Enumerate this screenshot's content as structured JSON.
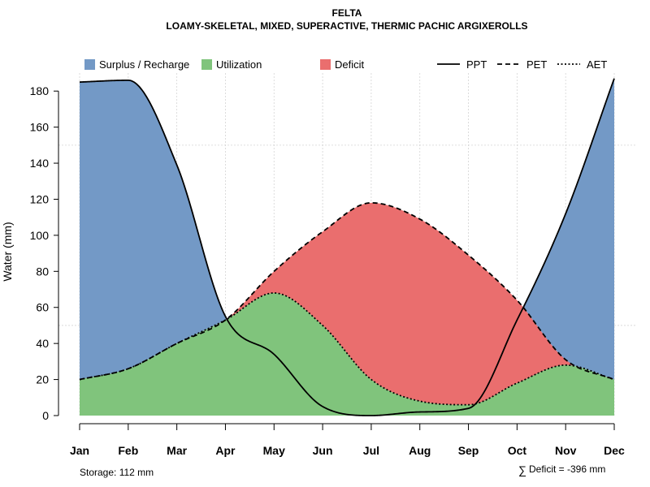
{
  "chart_data": {
    "type": "area",
    "title": "FELTA",
    "subtitle": "LOAMY-SKELETAL, MIXED, SUPERACTIVE, THERMIC PACHIC ARGIXEROLLS",
    "ylabel": "Water (mm)",
    "xlabel": "",
    "categories": [
      "Jan",
      "Feb",
      "Mar",
      "Apr",
      "May",
      "Jun",
      "Jul",
      "Aug",
      "Sep",
      "Oct",
      "Nov",
      "Dec"
    ],
    "ylim": [
      0,
      190
    ],
    "yticks": [
      0,
      20,
      40,
      60,
      80,
      100,
      120,
      140,
      160,
      180
    ],
    "grid": true,
    "legend_position": "top",
    "series": [
      {
        "name": "PPT",
        "style": "solid",
        "values": [
          185,
          186,
          139,
          55,
          34,
          5,
          0,
          2,
          4,
          53,
          112,
          187
        ]
      },
      {
        "name": "PET",
        "style": "dashed",
        "values": [
          20,
          26,
          40,
          53,
          80,
          102,
          118,
          109,
          89,
          64,
          31,
          20
        ]
      },
      {
        "name": "AET",
        "style": "dotted",
        "values": [
          20,
          26,
          40,
          53,
          68,
          50,
          20,
          8,
          6,
          18,
          28,
          20
        ]
      }
    ],
    "fills": [
      {
        "name": "Surplus / Recharge",
        "color": "#7399c6"
      },
      {
        "name": "Utilization",
        "color": "#80c47c"
      },
      {
        "name": "Deficit",
        "color": "#ea6e6e"
      }
    ],
    "annotations": {
      "storage": "Storage: 112 mm",
      "deficit_symbol": "∑",
      "deficit": "Deficit = -396 mm"
    }
  }
}
